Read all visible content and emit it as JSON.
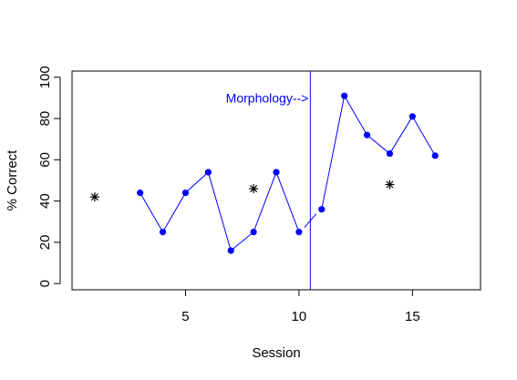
{
  "chart_data": {
    "type": "line",
    "title": "",
    "xlabel": "Session",
    "ylabel": "% Correct",
    "xlim": [
      0,
      18
    ],
    "ylim": [
      -3,
      103
    ],
    "x_ticks": [
      5,
      10,
      15
    ],
    "y_ticks": [
      0,
      20,
      40,
      60,
      80,
      100
    ],
    "grid": false,
    "legend": "none",
    "series": [
      {
        "marker": "filled-circle",
        "color": "#0000ff",
        "segments": [
          {
            "x": [
              3,
              4,
              5,
              6,
              7,
              8,
              9,
              10
            ],
            "y": [
              44,
              25,
              44,
              54,
              16,
              25,
              54,
              25
            ]
          },
          {
            "x": [
              11,
              12,
              13,
              14,
              15,
              16
            ],
            "y": [
              36,
              91,
              72,
              63,
              81,
              62
            ]
          }
        ],
        "points": [
          {
            "x": 3,
            "y": 44
          },
          {
            "x": 4,
            "y": 25
          },
          {
            "x": 5,
            "y": 44
          },
          {
            "x": 6,
            "y": 54
          },
          {
            "x": 7,
            "y": 16
          },
          {
            "x": 8,
            "y": 25
          },
          {
            "x": 9,
            "y": 54
          },
          {
            "x": 10,
            "y": 25
          },
          {
            "x": 11,
            "y": 36
          },
          {
            "x": 12,
            "y": 91
          },
          {
            "x": 13,
            "y": 72
          },
          {
            "x": 14,
            "y": 63
          },
          {
            "x": 15,
            "y": 81
          },
          {
            "x": 16,
            "y": 62
          }
        ],
        "dashed_connector": {
          "x": [
            10,
            11
          ],
          "y": [
            25,
            36
          ]
        }
      },
      {
        "marker": "asterisk",
        "color": "#000000",
        "points": [
          {
            "x": 1,
            "y": 42
          },
          {
            "x": 8,
            "y": 46
          },
          {
            "x": 14,
            "y": 48
          }
        ]
      }
    ],
    "phase_line": {
      "x": 10.5,
      "color": "#0000ff"
    },
    "annotation": {
      "text": "Morphology-->",
      "x": 10.5,
      "y": 90,
      "color": "#0000ff"
    }
  }
}
